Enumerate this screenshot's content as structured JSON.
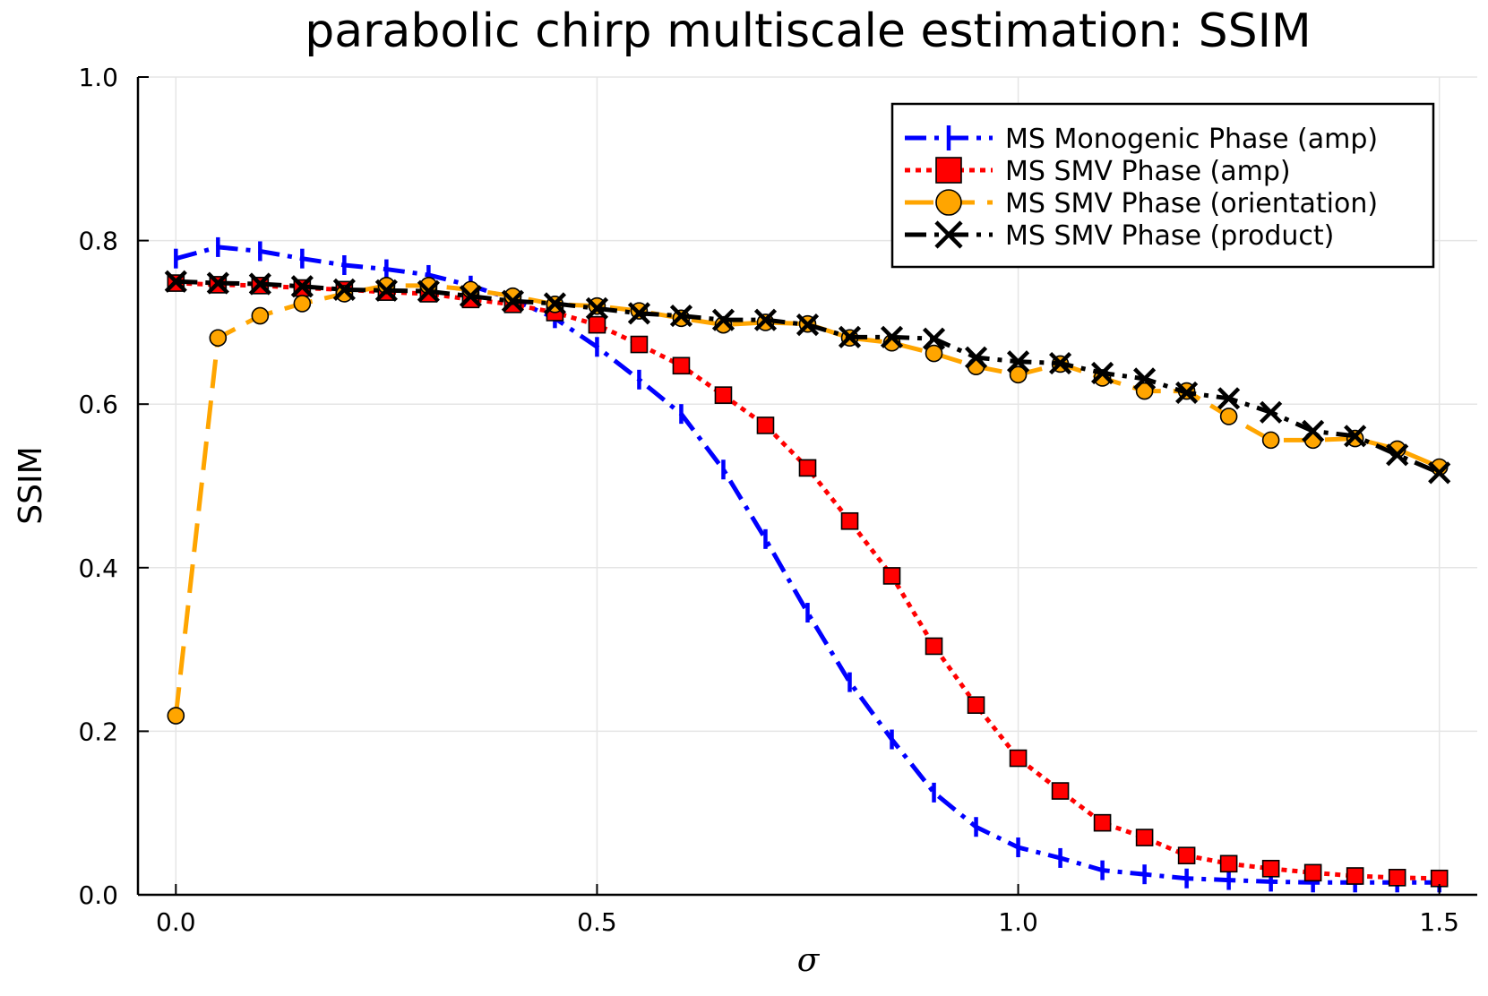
{
  "chart_data": {
    "type": "line",
    "title": "parabolic chirp multiscale estimation: SSIM",
    "xlabel": "σ",
    "ylabel": "SSIM",
    "xlim": [
      -0.045,
      1.545
    ],
    "ylim": [
      0.0,
      1.0
    ],
    "xticks": [
      {
        "value": 0.0,
        "label": "0.0"
      },
      {
        "value": 0.5,
        "label": "0.5"
      },
      {
        "value": 1.0,
        "label": "1.0"
      },
      {
        "value": 1.5,
        "label": "1.5"
      }
    ],
    "yticks": [
      {
        "value": 0.0,
        "label": "0.0"
      },
      {
        "value": 0.2,
        "label": "0.2"
      },
      {
        "value": 0.4,
        "label": "0.4"
      },
      {
        "value": 0.6,
        "label": "0.6"
      },
      {
        "value": 0.8,
        "label": "0.8"
      },
      {
        "value": 1.0,
        "label": "1.0"
      }
    ],
    "grid": true,
    "legend_position": "top-right",
    "x": [
      0.0,
      0.05,
      0.1,
      0.15,
      0.2,
      0.25,
      0.3,
      0.35,
      0.4,
      0.45,
      0.5,
      0.55,
      0.6,
      0.65,
      0.7,
      0.75,
      0.8,
      0.85,
      0.9,
      0.95,
      1.0,
      1.05,
      1.1,
      1.15,
      1.2,
      1.25,
      1.3,
      1.35,
      1.4,
      1.45,
      1.5
    ],
    "series": [
      {
        "name": "MS Monogenic Phase (amp)",
        "color": "#0000ff",
        "linestyle": "dashdot",
        "marker": "vline",
        "values": [
          0.778,
          0.792,
          0.787,
          0.778,
          0.77,
          0.765,
          0.758,
          0.745,
          0.728,
          0.705,
          0.67,
          0.63,
          0.588,
          0.52,
          0.435,
          0.345,
          0.26,
          0.19,
          0.125,
          0.083,
          0.058,
          0.045,
          0.03,
          0.025,
          0.02,
          0.018,
          0.016,
          0.015,
          0.015,
          0.015,
          0.015
        ]
      },
      {
        "name": "MS SMV Phase (amp)",
        "color": "#ff0000",
        "linestyle": "dotted",
        "marker": "square",
        "values": [
          0.748,
          0.746,
          0.745,
          0.742,
          0.74,
          0.737,
          0.735,
          0.728,
          0.722,
          0.712,
          0.697,
          0.673,
          0.647,
          0.611,
          0.574,
          0.522,
          0.457,
          0.39,
          0.304,
          0.232,
          0.167,
          0.127,
          0.088,
          0.07,
          0.048,
          0.038,
          0.032,
          0.027,
          0.023,
          0.021,
          0.02
        ]
      },
      {
        "name": "MS SMV Phase (orientation)",
        "color": "#ffa500",
        "linestyle": "dashed",
        "marker": "circle",
        "values": [
          0.219,
          0.681,
          0.708,
          0.723,
          0.735,
          0.745,
          0.745,
          0.74,
          0.732,
          0.722,
          0.72,
          0.714,
          0.705,
          0.697,
          0.7,
          0.698,
          0.681,
          0.675,
          0.662,
          0.646,
          0.636,
          0.649,
          0.632,
          0.616,
          0.616,
          0.585,
          0.556,
          0.556,
          0.558,
          0.545,
          0.523
        ]
      },
      {
        "name": "MS SMV Phase (product)",
        "color": "#000000",
        "linestyle": "dashdot",
        "marker": "x",
        "values": [
          0.75,
          0.748,
          0.747,
          0.744,
          0.74,
          0.739,
          0.738,
          0.732,
          0.726,
          0.723,
          0.717,
          0.711,
          0.708,
          0.703,
          0.703,
          0.697,
          0.682,
          0.682,
          0.68,
          0.657,
          0.652,
          0.65,
          0.638,
          0.631,
          0.614,
          0.607,
          0.59,
          0.567,
          0.561,
          0.538,
          0.516
        ]
      }
    ]
  }
}
